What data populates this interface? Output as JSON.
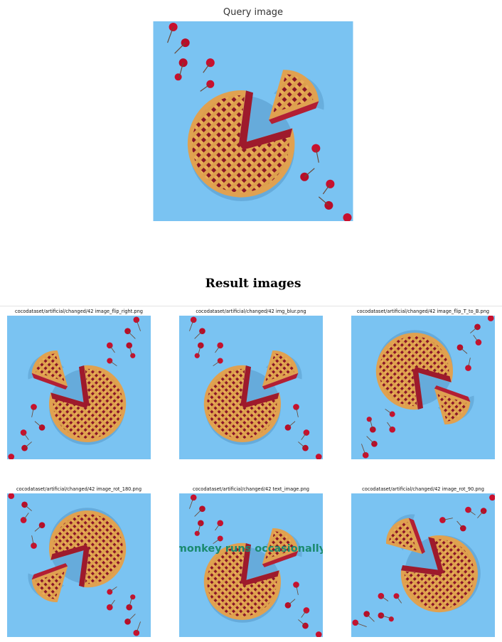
{
  "query": {
    "title": "Query image",
    "image": {
      "icon": "cherry-pie-photo",
      "background": "#7ac3f2"
    }
  },
  "results": {
    "title": "Result images",
    "items": [
      {
        "caption": "cocodataset/artificial/changed/42 image_flip_right.png",
        "transform": "flip-horizontal"
      },
      {
        "caption": "cocodataset/artificial/changed/42 img_blur.png",
        "transform": "none"
      },
      {
        "caption": "cocodataset/artificial/changed/42 image_flip_T_to_B.png",
        "transform": "flip-vertical"
      },
      {
        "caption": "cocodataset/artificial/changed/42 image_rot_180.png",
        "transform": "rotate-180"
      },
      {
        "caption": "cocodataset/artificial/changed/42 text_image.png",
        "transform": "none",
        "overlay_text": "monkey runs occasionally"
      },
      {
        "caption": "cocodataset/artificial/changed/42 image_rot_90.png",
        "transform": "rotate-90"
      }
    ]
  },
  "colors": {
    "background": "#7ac3f2",
    "crust": "#e9ad58",
    "filling": "#8a1428",
    "cherry": "#c8102e",
    "overlay_text": "#1a8a6e"
  }
}
